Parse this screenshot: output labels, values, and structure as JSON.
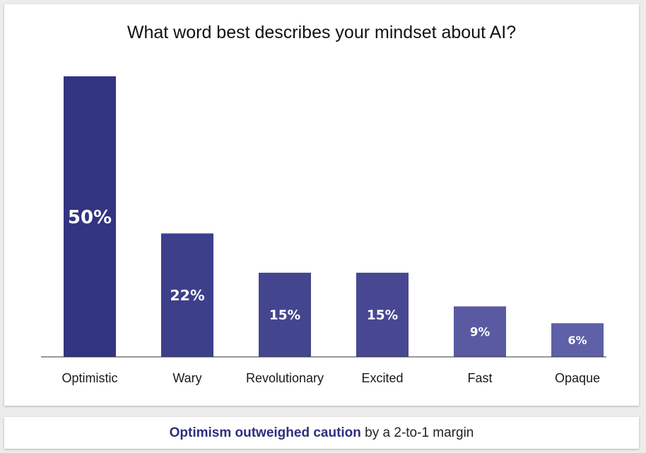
{
  "chart_data": {
    "type": "bar",
    "title": "What word best describes your mindset about AI?",
    "categories": [
      "Optimistic",
      "Wary",
      "Revolutionary",
      "Excited",
      "Fast",
      "Opaque"
    ],
    "values": [
      50,
      22,
      15,
      15,
      9,
      6
    ],
    "data_labels": [
      "50%",
      "22%",
      "15%",
      "15%",
      "9%",
      "6%"
    ],
    "ylim": [
      0,
      50
    ],
    "grid": false,
    "legend": "none",
    "bar_colors": [
      "#333482",
      "#3e3f8b",
      "#44458f",
      "#474891",
      "#595aa2",
      "#5e60a8"
    ]
  },
  "footer": {
    "highlight": "Optimism outweighed caution",
    "rest": " by a 2-to-1 margin",
    "highlight_color": "#2e2f7f"
  }
}
